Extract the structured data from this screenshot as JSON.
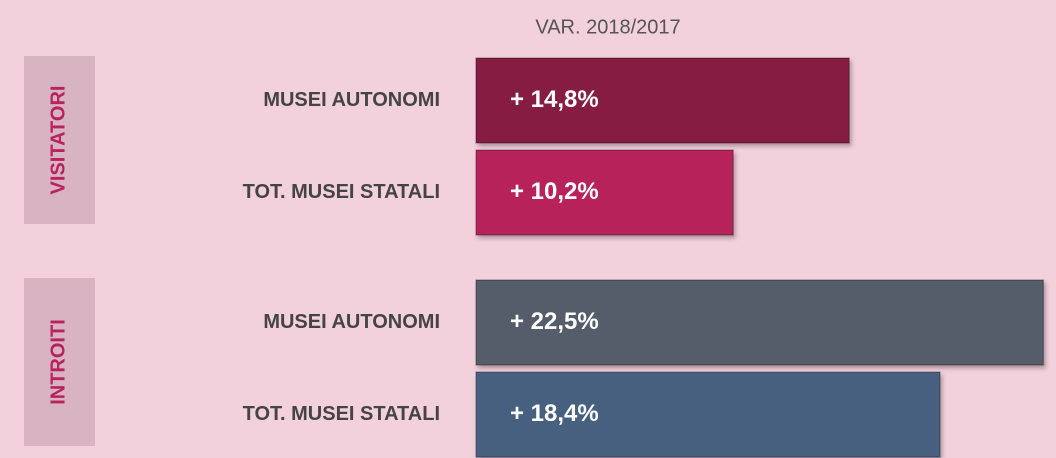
{
  "chart_data": {
    "type": "bar",
    "orientation": "horizontal",
    "subtitle": "VAR. 2018/2017",
    "categories": [
      "MUSEI AUTONOMI",
      "TOT. MUSEI STATALI"
    ],
    "xlim": [
      0,
      23
    ],
    "series": [
      {
        "name": "VISITATORI",
        "colors": [
          "#861d42",
          "#b8245a"
        ],
        "values": [
          14.8,
          10.2
        ],
        "value_labels": [
          "+ 14,8%",
          "+ 10,2%"
        ]
      },
      {
        "name": "INTROITI",
        "colors": [
          "#555c6b",
          "#46607f"
        ],
        "values": [
          22.5,
          18.4
        ],
        "value_labels": [
          "+ 22,5%",
          "+ 18,4%"
        ]
      }
    ]
  }
}
